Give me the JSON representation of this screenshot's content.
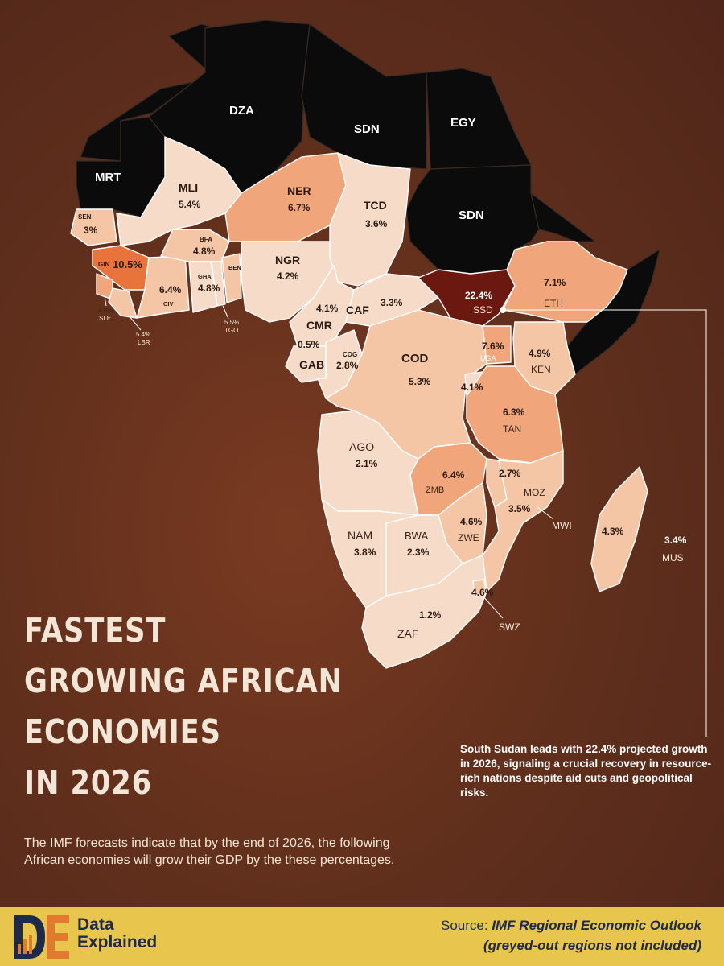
{
  "title": [
    "FASTEST",
    "GROWING AFRICAN",
    "ECONOMIES",
    "IN 2026"
  ],
  "description": "The IMF forecasts indicate that by the end of 2026, the following African economies will grow their GDP by the these percentages.",
  "callout": "South Sudan leads with 22.4% projected growth in 2026, signaling a crucial recovery in resource-rich nations despite aid cuts and geopolitical risks.",
  "brand": {
    "name_line1": "Data",
    "name_line2": "Explained",
    "logo_letters": "DE"
  },
  "source": {
    "prefix": "Source: ",
    "name": "IMF Regional Economic Outlook",
    "note": "(greyed-out regions not included)"
  },
  "colors": {
    "background": "#5e2e1b",
    "excluded": "#0a0a0a",
    "growth_scale": [
      "#f6dcc8",
      "#f4c6a5",
      "#f0a57a",
      "#e8743c",
      "#6b1810"
    ],
    "footer": "#e8c64e"
  },
  "excluded_regions": [
    "DZA",
    "SDN",
    "EGY",
    "MRT",
    "SDN"
  ],
  "countries": [
    {
      "code": "MLI",
      "value": "5.4%"
    },
    {
      "code": "NER",
      "value": "6.7%"
    },
    {
      "code": "TCD",
      "value": "3.6%"
    },
    {
      "code": "SEN",
      "value": "3%"
    },
    {
      "code": "GIN",
      "value": "10.5%"
    },
    {
      "code": "BFA",
      "value": "4.8%"
    },
    {
      "code": "BEN",
      "value": ""
    },
    {
      "code": "NGR",
      "value": "4.2%"
    },
    {
      "code": "CIV",
      "value": "6.4%"
    },
    {
      "code": "GHA",
      "value": "4.8%"
    },
    {
      "code": "SLE",
      "value": "4.9%"
    },
    {
      "code": "LBR",
      "value": "5.4%"
    },
    {
      "code": "TGO",
      "value": "5.5%"
    },
    {
      "code": "CMR",
      "value": "4.1%"
    },
    {
      "code": "CAF",
      "value": "3.3%"
    },
    {
      "code": "GAB",
      "value": "0.5%"
    },
    {
      "code": "COG",
      "value": "2.8%"
    },
    {
      "code": "COD",
      "value": "5.3%"
    },
    {
      "code": "SSD",
      "value": "22.4%"
    },
    {
      "code": "ETH",
      "value": "7.1%"
    },
    {
      "code": "UGA",
      "value": "7.6%"
    },
    {
      "code": "KEN",
      "value": "4.9%"
    },
    {
      "code": "RWA",
      "value": "4.1%"
    },
    {
      "code": "TAN",
      "value": "6.3%"
    },
    {
      "code": "AGO",
      "value": "2.1%"
    },
    {
      "code": "ZMB",
      "value": "6.4%"
    },
    {
      "code": "MOZ",
      "value": "2.7%"
    },
    {
      "code": "MWI",
      "value": "3.5%"
    },
    {
      "code": "MDG",
      "value": "4.3%"
    },
    {
      "code": "MUS",
      "value": "3.4%"
    },
    {
      "code": "NAM",
      "value": "3.8%"
    },
    {
      "code": "BWA",
      "value": "2.3%"
    },
    {
      "code": "ZWE",
      "value": "4.6%"
    },
    {
      "code": "SWZ",
      "value": "4.6%"
    },
    {
      "code": "ZAF",
      "value": "1.2%"
    }
  ]
}
